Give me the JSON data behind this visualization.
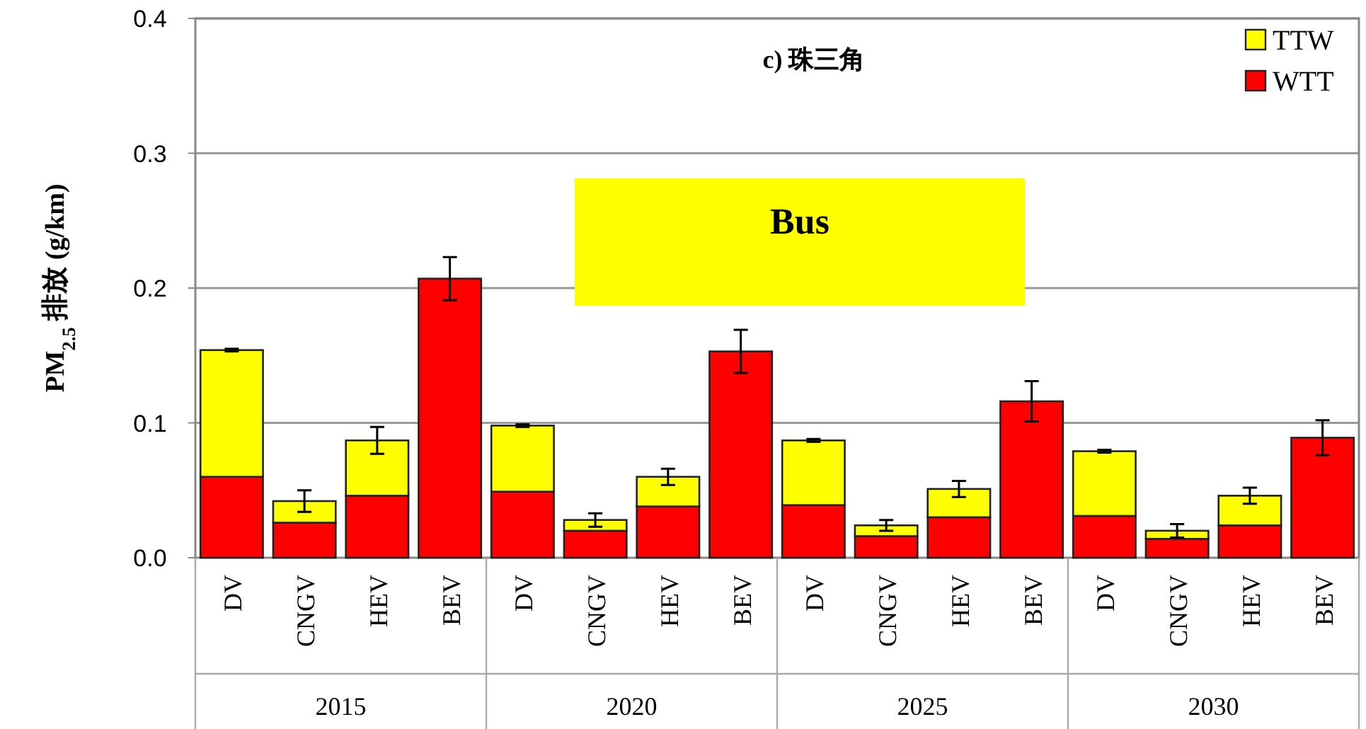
{
  "chart_data": {
    "type": "bar",
    "stacked": true,
    "title": "c)  珠三角",
    "ylabel": "PM$_{2.5}$ 排放 (g/km)",
    "categories": [
      "DV",
      "CNGV",
      "HEV",
      "BEV",
      "DV",
      "CNGV",
      "HEV",
      "BEV",
      "DV",
      "CNGV",
      "HEV",
      "BEV",
      "DV",
      "CNGV",
      "HEV",
      "BEV"
    ],
    "series": [
      {
        "name": "WTT",
        "color": "#ff0000",
        "values": [
          0.06,
          0.026,
          0.046,
          0.207,
          0.049,
          0.02,
          0.038,
          0.153,
          0.039,
          0.016,
          0.03,
          0.116,
          0.031,
          0.014,
          0.024,
          0.089
        ],
        "errors": [
          null,
          null,
          null,
          0.016,
          null,
          null,
          null,
          0.016,
          null,
          null,
          null,
          0.015,
          null,
          null,
          null,
          0.013
        ]
      },
      {
        "name": "TTW",
        "color": "#ffff00",
        "values": [
          0.094,
          0.016,
          0.041,
          0,
          0.049,
          0.008,
          0.022,
          0,
          0.048,
          0.008,
          0.021,
          0,
          0.048,
          0.006,
          0.022,
          0
        ],
        "errors": [
          0.001,
          0.008,
          0.01,
          null,
          0.001,
          0.005,
          0.006,
          null,
          0.001,
          0.004,
          0.006,
          null,
          0.001,
          0.005,
          0.006,
          null
        ]
      }
    ],
    "ylim": [
      0,
      0.4
    ],
    "yticks": [
      {
        "value": 0,
        "label": "0.0"
      },
      {
        "value": 0.1,
        "label": "0.1"
      },
      {
        "value": 0.2,
        "label": "0.2"
      },
      {
        "value": 0.3,
        "label": "0.3"
      },
      {
        "value": 0.4,
        "label": "0.4"
      }
    ],
    "grid": "y",
    "legend": "top right",
    "annotations": [
      "Bus",
      "2015",
      "2020",
      "2025",
      "2030"
    ]
  }
}
